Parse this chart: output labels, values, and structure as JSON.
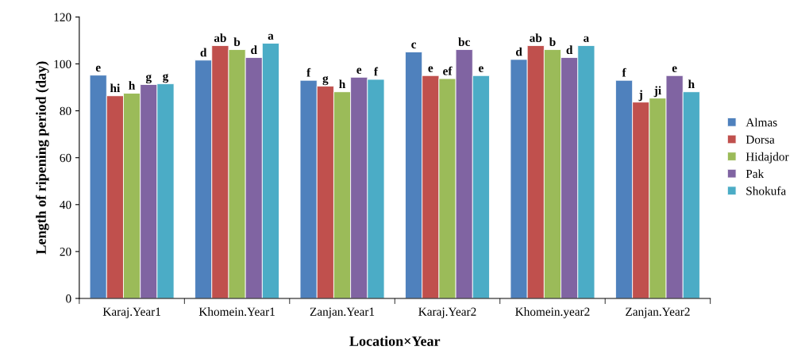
{
  "chart_data": {
    "type": "bar",
    "xlabel": "Location×Year",
    "ylabel": "Length of ripening period (day)",
    "categories": [
      "Karaj.Year1",
      "Khomein.Year1",
      "Zanjan.Year1",
      "Karaj.Year2",
      "Khomein.year2",
      "Zanjan.Year2"
    ],
    "series": [
      {
        "name": "Almas",
        "color": "#4f81bd",
        "values": [
          95.2,
          101.6,
          93,
          105.1,
          101.9,
          93
        ],
        "value_labels": [
          "e",
          "d",
          "f",
          "c",
          "d",
          "f"
        ]
      },
      {
        "name": "Dorsa",
        "color": "#c0504d",
        "values": [
          86.4,
          107.8,
          90.5,
          95,
          107.8,
          83.7
        ],
        "value_labels": [
          "hi",
          "ab",
          "g",
          "e",
          "ab",
          "j"
        ]
      },
      {
        "name": "Hidajdor",
        "color": "#9bbb59",
        "values": [
          87.5,
          106.1,
          88.1,
          93.7,
          106.1,
          85.4
        ],
        "value_labels": [
          "h",
          "b",
          "h",
          "ef",
          "b",
          "ji"
        ]
      },
      {
        "name": "Pak",
        "color": "#8064a2",
        "values": [
          91.2,
          102.7,
          94.3,
          106.1,
          102.7,
          95
        ],
        "value_labels": [
          "g",
          "d",
          "e",
          "bc",
          "d",
          "e"
        ]
      },
      {
        "name": "Shokufa",
        "color": "#4bacc6",
        "values": [
          91.5,
          108.8,
          93.4,
          95,
          107.8,
          88.1
        ],
        "value_labels": [
          "g",
          "a",
          "f",
          "e",
          "a",
          "h"
        ]
      }
    ],
    "ylim": [
      0,
      120
    ],
    "yticks": [
      0,
      20,
      40,
      60,
      80,
      100,
      120
    ],
    "grid": false,
    "legend": "right"
  }
}
